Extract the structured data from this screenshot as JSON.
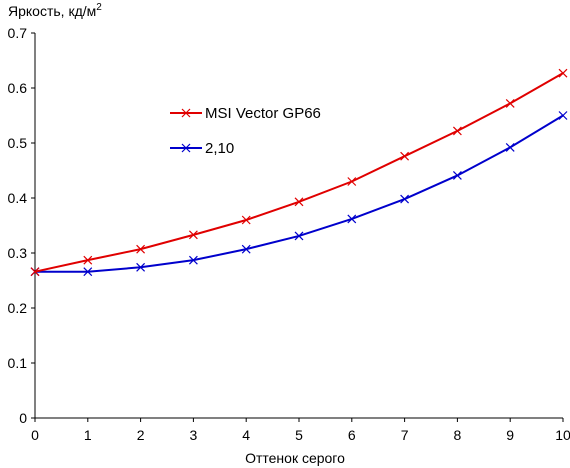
{
  "chart_data": {
    "type": "line",
    "ylabel": "Яркость, кд/м",
    "ylabel_sup": "2",
    "xlabel": "Оттенок серого",
    "xlim": [
      0,
      10
    ],
    "ylim": [
      0,
      0.7
    ],
    "x_ticks": [
      "0",
      "1",
      "2",
      "3",
      "4",
      "5",
      "6",
      "7",
      "8",
      "9",
      "10"
    ],
    "y_ticks": [
      "0",
      "0.1",
      "0.2",
      "0.3",
      "0.4",
      "0.5",
      "0.6",
      "0.7"
    ],
    "grid": false,
    "legend_position": "upper-left inside plot",
    "x": [
      0,
      1,
      2,
      3,
      4,
      5,
      6,
      7,
      8,
      9,
      10
    ],
    "series": [
      {
        "name": "MSI Vector GP66",
        "color": "#e00000",
        "marker": "x",
        "values": [
          0.266,
          0.287,
          0.307,
          0.333,
          0.36,
          0.393,
          0.43,
          0.476,
          0.522,
          0.572,
          0.627
        ]
      },
      {
        "name": "2,10",
        "color": "#0000cc",
        "marker": "x",
        "values": [
          0.266,
          0.266,
          0.274,
          0.287,
          0.307,
          0.331,
          0.362,
          0.398,
          0.441,
          0.492,
          0.55
        ]
      }
    ]
  }
}
